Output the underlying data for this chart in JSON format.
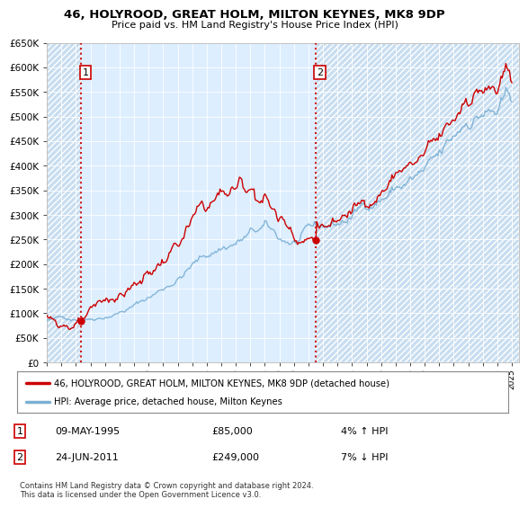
{
  "title": "46, HOLYROOD, GREAT HOLM, MILTON KEYNES, MK8 9DP",
  "subtitle": "Price paid vs. HM Land Registry's House Price Index (HPI)",
  "ylim": [
    0,
    650000
  ],
  "ylabel_ticks": [
    0,
    50000,
    100000,
    150000,
    200000,
    250000,
    300000,
    350000,
    400000,
    450000,
    500000,
    550000,
    600000,
    650000
  ],
  "xlim_start": 1993.0,
  "xlim_end": 2025.5,
  "sale1_date": 1995.36,
  "sale1_price": 85000,
  "sale2_date": 2011.48,
  "sale2_price": 249000,
  "hpi_color": "#7ab0d4",
  "sale_color": "#cc0000",
  "dashed_color": "#cc0000",
  "plot_bg_color": "#ddeeff",
  "hatch_bg_color": "#c8ddf0",
  "legend_line1": "46, HOLYROOD, GREAT HOLM, MILTON KEYNES, MK8 9DP (detached house)",
  "legend_line2": "HPI: Average price, detached house, Milton Keynes",
  "sale1_text": "09-MAY-1995",
  "sale1_price_text": "£85,000",
  "sale1_hpi_text": "4% ↑ HPI",
  "sale2_text": "24-JUN-2011",
  "sale2_price_text": "£249,000",
  "sale2_hpi_text": "7% ↓ HPI",
  "footer1": "Contains HM Land Registry data © Crown copyright and database right 2024.",
  "footer2": "This data is licensed under the Open Government Licence v3.0."
}
